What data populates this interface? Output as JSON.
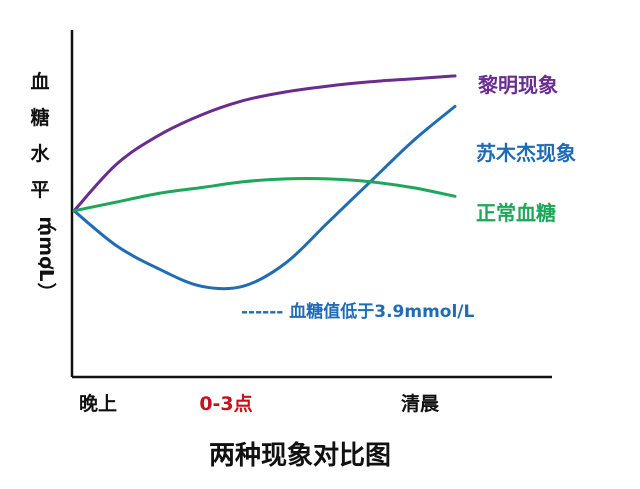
{
  "chart_data": {
    "type": "line",
    "title": "两种现象对比图",
    "ylabel": "血糖水平（mmol/L）",
    "ylabel_chars": [
      "血",
      "糖",
      "水",
      "平",
      "（",
      "mmol",
      "/L",
      "）"
    ],
    "x_ticks": [
      {
        "label": "晚上",
        "x": 0,
        "color": "#111111"
      },
      {
        "label": "0-3点",
        "x": 1,
        "color": "#c8101f"
      },
      {
        "label": "清晨",
        "x": 2,
        "color": "#111111"
      }
    ],
    "xlim": [
      0,
      2.25
    ],
    "ylim": [
      0,
      10
    ],
    "series": [
      {
        "name": "黎明现象",
        "color": "#6a2c8f",
        "x": [
          0,
          0.25,
          0.5,
          0.75,
          1.0,
          1.25,
          1.5,
          1.75,
          2.0,
          2.25
        ],
        "y": [
          4.8,
          6.4,
          7.4,
          8.1,
          8.6,
          8.9,
          9.1,
          9.25,
          9.35,
          9.45
        ]
      },
      {
        "name": "苏木杰现象",
        "color": "#1f6cb5",
        "x": [
          0,
          0.25,
          0.5,
          0.75,
          1.0,
          1.25,
          1.5,
          1.75,
          2.0,
          2.25
        ],
        "y": [
          4.8,
          3.6,
          2.8,
          2.2,
          2.2,
          3.0,
          4.4,
          5.8,
          7.2,
          8.4
        ]
      },
      {
        "name": "正常血糖",
        "color": "#1fa65a",
        "x": [
          0,
          0.25,
          0.5,
          0.75,
          1.0,
          1.25,
          1.5,
          1.75,
          2.0,
          2.25
        ],
        "y": [
          4.8,
          5.1,
          5.4,
          5.6,
          5.8,
          5.9,
          5.9,
          5.8,
          5.6,
          5.3
        ]
      }
    ],
    "annotation": {
      "text": "------ 血糖值低于3.9mmol/L",
      "color": "#1f6cb5"
    },
    "grid": false,
    "legend_position": "right"
  }
}
